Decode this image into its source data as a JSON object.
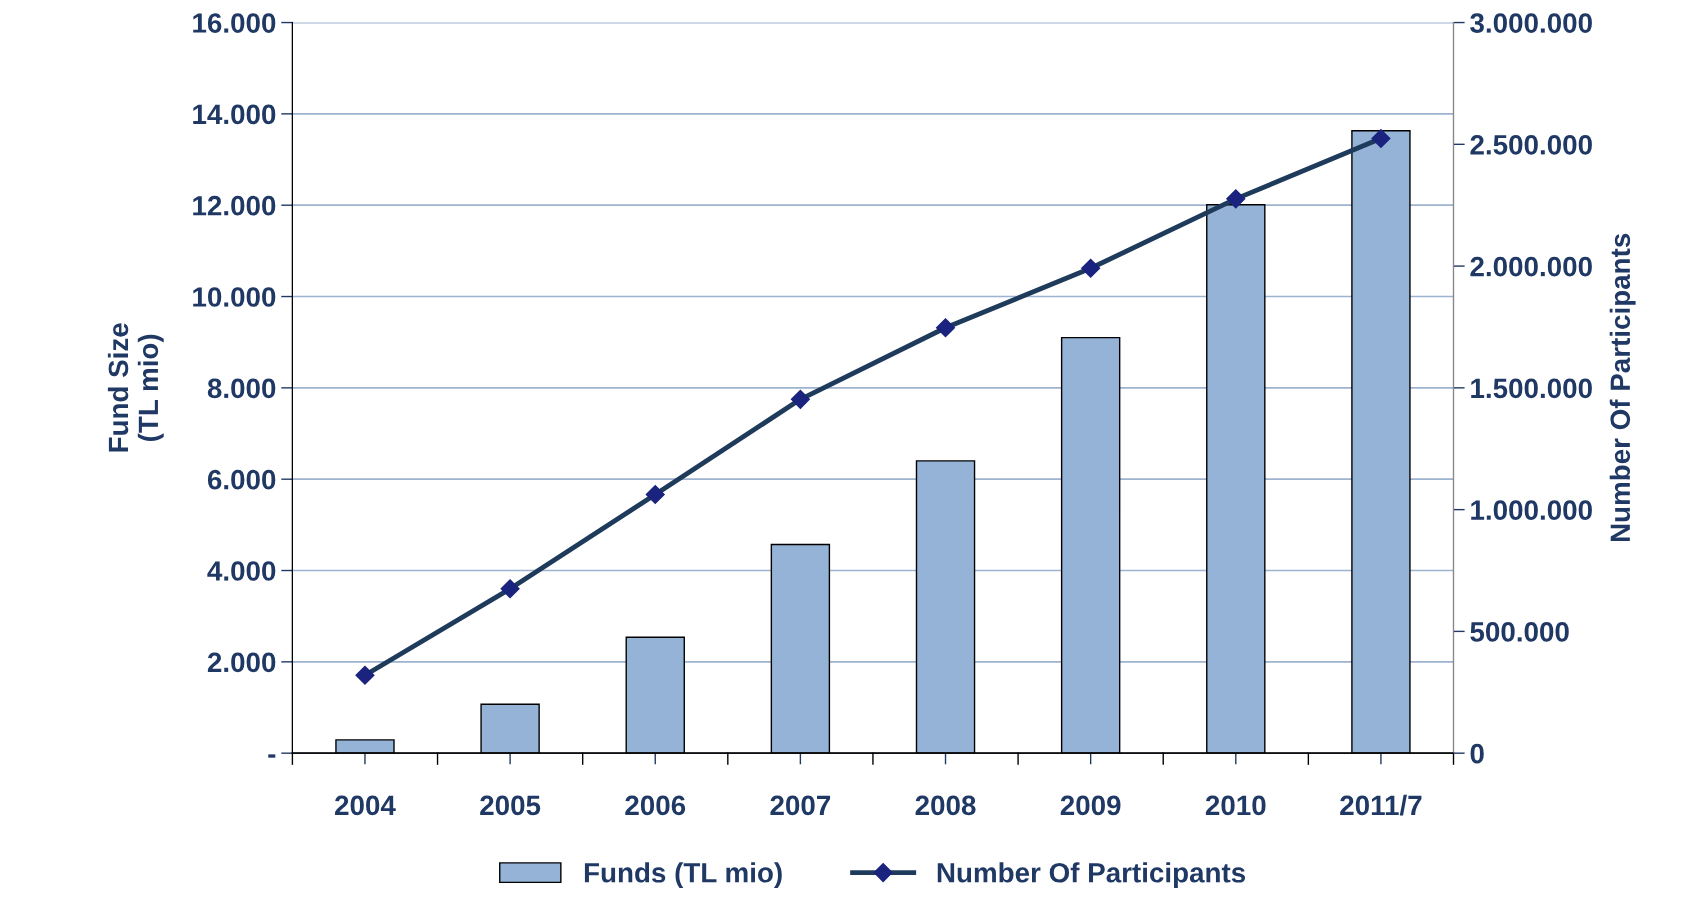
{
  "chart_data": {
    "type": "bar",
    "ylabel": "Fund Size\n(TL mio)",
    "y2label": "Number Of Participants",
    "categories": [
      "2004",
      "2005",
      "2006",
      "2007",
      "2008",
      "2009",
      "2010",
      "2011/7"
    ],
    "series": [
      {
        "name": "Funds (TL mio)",
        "color": "#95b3d7",
        "values": [
          290,
          1070,
          2540,
          4570,
          6400,
          9100,
          12010,
          13630
        ]
      },
      {
        "name": "Number Of Participants",
        "type": "line",
        "axis": "y2",
        "color": "#1f3b5c",
        "marker": "diamond",
        "values": [
          320000,
          675000,
          1062000,
          1453000,
          1747000,
          1991000,
          2276000,
          2524000
        ]
      }
    ],
    "ylim": [
      0,
      16000
    ],
    "yticks": [
      {
        "value": 0,
        "label": "-"
      },
      {
        "value": 2000,
        "label": "2.000"
      },
      {
        "value": 4000,
        "label": "4.000"
      },
      {
        "value": 6000,
        "label": "6.000"
      },
      {
        "value": 8000,
        "label": "8.000"
      },
      {
        "value": 10000,
        "label": "10.000"
      },
      {
        "value": 12000,
        "label": "12.000"
      },
      {
        "value": 14000,
        "label": "14.000"
      },
      {
        "value": 16000,
        "label": "16.000"
      }
    ],
    "y2lim": [
      0,
      3000000
    ],
    "y2ticks": [
      0,
      {
        "value": 500000,
        "label": "500.000"
      },
      {
        "value": 1000000,
        "label": "1.000.000"
      },
      {
        "value": 1500000,
        "label": "1.500.000"
      },
      {
        "value": 2000000,
        "label": "2.000.000"
      },
      {
        "value": 2500000,
        "label": "2.500.000"
      },
      {
        "value": 3000000,
        "label": "3.000.000"
      }
    ],
    "grid": "y",
    "legend": "bottom"
  }
}
